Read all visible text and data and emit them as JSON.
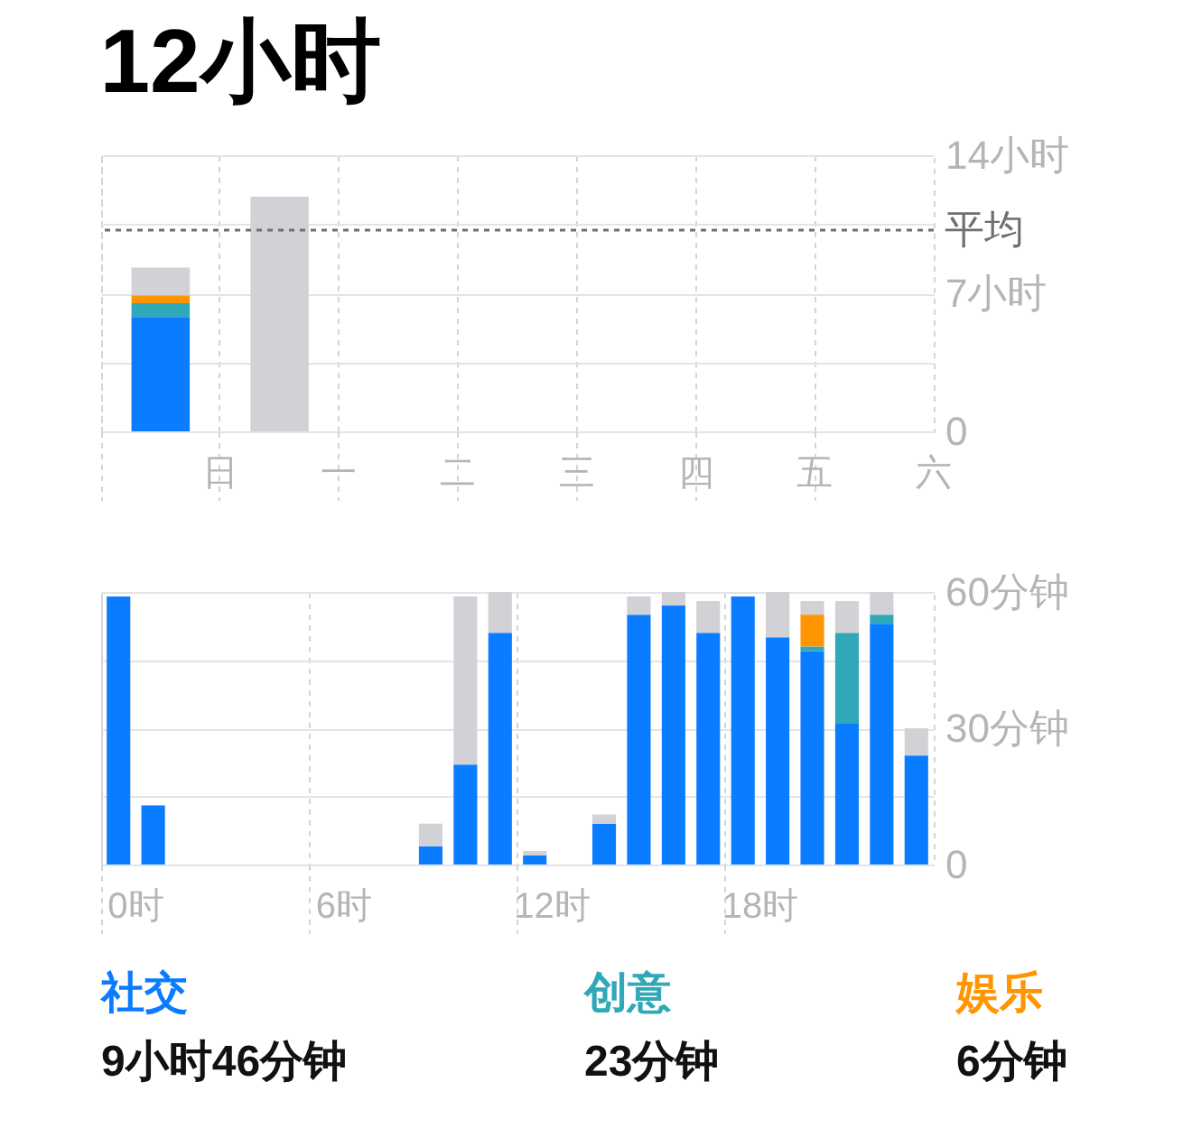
{
  "chart_data": [
    {
      "type": "bar",
      "title": "12小时",
      "categories": [
        "日",
        "一",
        "二",
        "三",
        "四",
        "五",
        "六"
      ],
      "stacked": true,
      "series": [
        {
          "color": "#0a7cff",
          "values": [
            5.8,
            null,
            null,
            null,
            null,
            null,
            null
          ]
        },
        {
          "color": "#30a8b8",
          "values": [
            0.7,
            null,
            null,
            null,
            null,
            null,
            null
          ]
        },
        {
          "color": "#ff9500",
          "values": [
            0.4,
            null,
            null,
            null,
            null,
            null,
            null
          ]
        },
        {
          "color": "#d1d1d6",
          "values": [
            1.4,
            11.9,
            null,
            null,
            null,
            null,
            null
          ]
        }
      ],
      "ylim": [
        0,
        14
      ],
      "yticks": [
        0,
        {
          "value": 3.5,
          "label": null
        },
        {
          "value": 7,
          "label": "7小时"
        },
        {
          "value": 10.5,
          "label": null
        },
        {
          "value": 14,
          "label": "14小时"
        }
      ],
      "ref_lines": [
        {
          "axis": "y",
          "value": 10.2,
          "label": "平均",
          "line_style": "dashed",
          "color": "#6e6e73"
        }
      ],
      "grid": true
    },
    {
      "type": "bar",
      "categories": [
        "0时",
        null,
        null,
        null,
        null,
        null,
        "6时",
        null,
        null,
        null,
        null,
        null,
        "12时",
        null,
        null,
        null,
        null,
        null,
        "18时",
        null,
        null,
        null,
        null,
        null
      ],
      "stacked": true,
      "series": [
        {
          "name": "社交",
          "color": "#0a7cff",
          "values": [
            59,
            13,
            null,
            null,
            null,
            null,
            null,
            null,
            null,
            4,
            22,
            51,
            2,
            null,
            9,
            55,
            57,
            51,
            59,
            50,
            47,
            31,
            53,
            24
          ]
        },
        {
          "name": "创意",
          "color": "#30a8b8",
          "values": [
            null,
            null,
            null,
            null,
            null,
            null,
            null,
            null,
            null,
            null,
            null,
            null,
            null,
            null,
            null,
            null,
            null,
            null,
            null,
            null,
            1,
            20,
            2,
            null
          ]
        },
        {
          "name": "娱乐",
          "color": "#ff9500",
          "values": [
            null,
            null,
            null,
            null,
            null,
            null,
            null,
            null,
            null,
            null,
            null,
            null,
            null,
            null,
            null,
            null,
            null,
            null,
            null,
            null,
            7,
            null,
            null,
            null
          ]
        },
        {
          "color": "#d1d1d6",
          "values": [
            null,
            null,
            null,
            null,
            null,
            null,
            null,
            null,
            null,
            5,
            37,
            9,
            1,
            null,
            2,
            4,
            3,
            7,
            null,
            10,
            3,
            7,
            5,
            6
          ]
        }
      ],
      "ylim": [
        0,
        60
      ],
      "yticks": [
        0,
        {
          "value": 15,
          "label": null
        },
        {
          "value": 30,
          "label": "30分钟"
        },
        {
          "value": 45,
          "label": null
        },
        {
          "value": 60,
          "label": "60分钟"
        }
      ],
      "grid": true,
      "legend": "bottom",
      "annotations": [
        "9小时46分钟",
        "23分钟",
        "6分钟"
      ]
    }
  ]
}
